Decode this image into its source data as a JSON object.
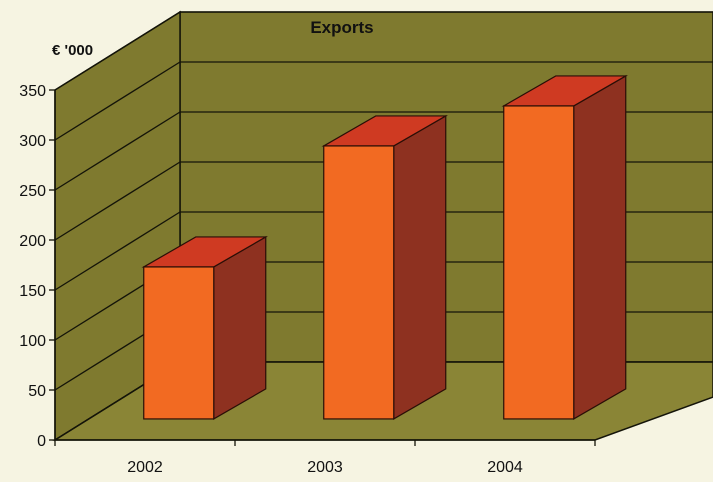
{
  "chart_data": {
    "type": "bar",
    "title": "Exports",
    "ylabel": "€ '000",
    "xlabel": "",
    "categories": [
      "2002",
      "2003",
      "2004"
    ],
    "values": [
      152,
      273,
      313
    ],
    "ylim": [
      0,
      350
    ],
    "yticks": [
      0,
      50,
      100,
      150,
      200,
      250,
      300,
      350
    ],
    "grid": true,
    "legend": "none",
    "style": "3d-column"
  },
  "colors": {
    "background": "#f6f4e2",
    "wall": "#7f7a2f",
    "floor": "#8a8536",
    "bar_front": "#f26a22",
    "bar_top": "#cf3a22",
    "bar_side": "#8e3120",
    "gridline": "#141409"
  }
}
